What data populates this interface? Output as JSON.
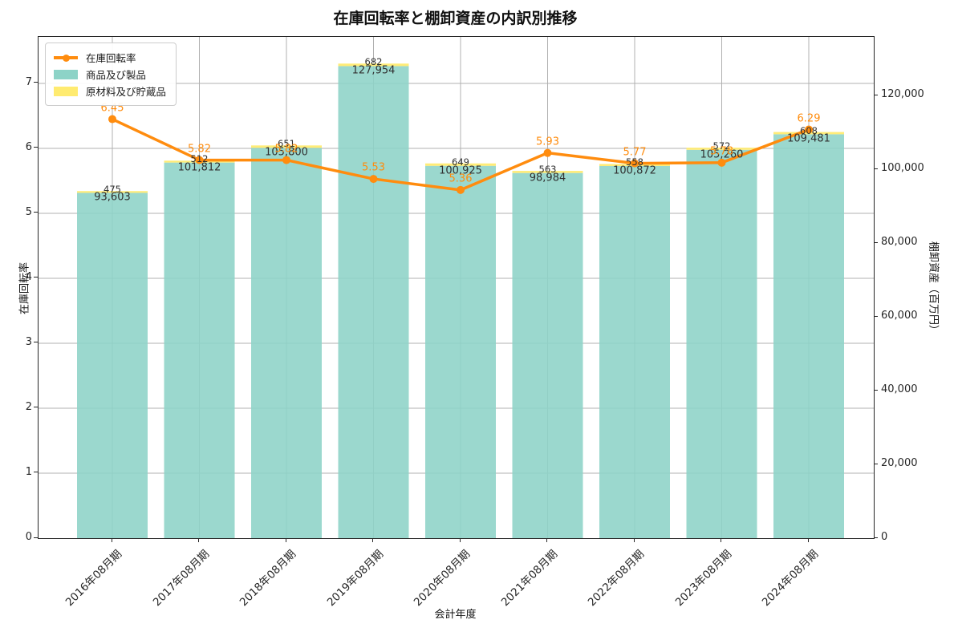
{
  "title": "在庫回転率と棚卸資産の内訳別推移",
  "chart_data": {
    "type": "bar",
    "subtype": "stacked-bar-with-line",
    "title": "在庫回転率と棚卸資産の内訳別推移",
    "xlabel": "会計年度",
    "ylabel_left": "在庫回転率",
    "ylabel_right": "棚卸資産（百万円）",
    "categories": [
      "2016年08月期",
      "2017年08月期",
      "2018年08月期",
      "2019年08月期",
      "2020年08月期",
      "2021年08月期",
      "2022年08月期",
      "2023年08月期",
      "2024年08月期"
    ],
    "series": [
      {
        "name": "在庫回転率",
        "type": "line",
        "axis": "left",
        "color": "#ff8c0e",
        "marker": "circle",
        "values": [
          6.45,
          5.82,
          5.82,
          5.53,
          5.36,
          5.93,
          5.77,
          5.78,
          6.29
        ]
      },
      {
        "name": "商品及び製品",
        "type": "bar",
        "axis": "right",
        "color": "#8dd3c7",
        "values": [
          93603,
          101812,
          105800,
          127954,
          100925,
          98984,
          100872,
          105260,
          109481
        ]
      },
      {
        "name": "原材料及び貯蔵品",
        "type": "bar",
        "axis": "right",
        "color": "#ffeb70",
        "values": [
          475,
          512,
          651,
          682,
          649,
          563,
          558,
          572,
          608
        ]
      }
    ],
    "ylim_left": [
      0,
      7.72
    ],
    "ylim_right": [
      0,
      135900
    ],
    "yticks_left": [
      0,
      1,
      2,
      3,
      4,
      5,
      6,
      7
    ],
    "yticks_right": [
      0,
      20000,
      40000,
      60000,
      80000,
      100000,
      120000
    ],
    "grid": true,
    "legend_position": "upper left",
    "colors": {
      "line": "#ff8c0e",
      "bar_products": "#8dd3c7",
      "bar_materials": "#ffeb70",
      "grid": "#b0b0b0",
      "label_text": "#303030"
    }
  }
}
